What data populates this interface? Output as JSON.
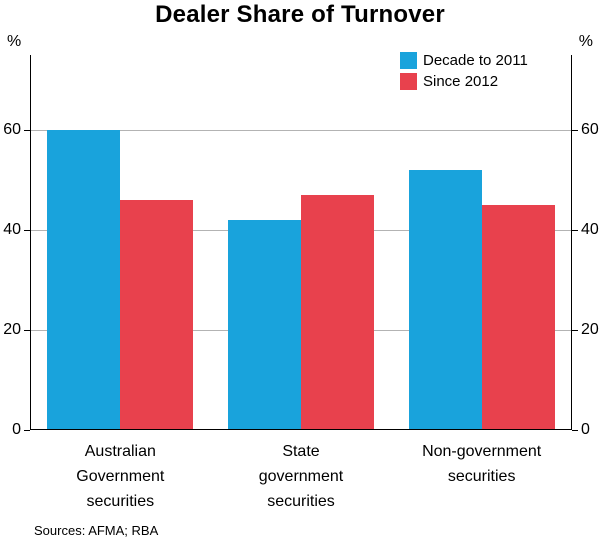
{
  "title": "Dealer Share of Turnover",
  "axis": {
    "unit_left": "%",
    "unit_right": "%",
    "ticks": [
      0,
      20,
      40,
      60
    ],
    "ymax": 75
  },
  "legend": [
    {
      "label": "Decade to 2011",
      "color": "#19A3DC"
    },
    {
      "label": "Since 2012",
      "color": "#E8414D"
    }
  ],
  "chart_data": {
    "type": "bar",
    "title": "Dealer Share of Turnover",
    "categories": [
      "Australian Government securities",
      "State government securities",
      "Non-government securities"
    ],
    "category_lines": [
      [
        "Australian",
        "Government",
        "securities"
      ],
      [
        "State",
        "government",
        "securities"
      ],
      [
        "Non-government",
        "securities"
      ]
    ],
    "series": [
      {
        "name": "Decade to 2011",
        "color": "#19A3DC",
        "values": [
          60,
          42,
          52
        ]
      },
      {
        "name": "Since 2012",
        "color": "#E8414D",
        "values": [
          46,
          47,
          45
        ]
      }
    ],
    "xlabel": "",
    "ylabel": "%",
    "ylim": [
      0,
      75
    ],
    "grid": true,
    "legend_position": "top-right"
  },
  "footer": {
    "sources": "Sources:  AFMA; RBA"
  }
}
